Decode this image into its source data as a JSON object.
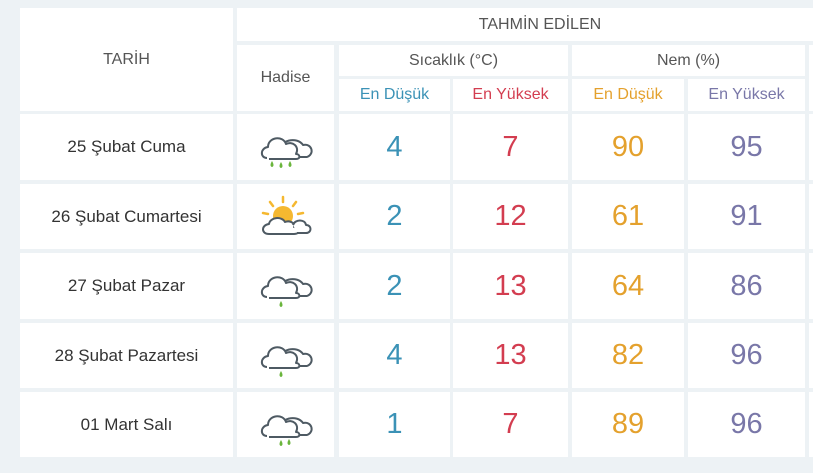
{
  "colors": {
    "temp_min": "#3b92b6",
    "temp_max": "#d33d50",
    "hum_min": "#e4a12d",
    "hum_max": "#7977a8",
    "header_text": "#555555",
    "cloud_stroke": "#4e5a63",
    "rain": "#6ab53c",
    "sun": "#f5b830"
  },
  "header": {
    "date_label": "TARİH",
    "event_label": "Hadise",
    "forecast_label": "TAHMİN EDİLEN",
    "temp_label": "Sıcaklık (°C)",
    "humidity_label": "Nem (%)",
    "min_label": "En Düşük",
    "max_label": "En Yüksek"
  },
  "rows": [
    {
      "date": "25 Şubat Cuma",
      "icon": "rain-cloud-icon",
      "temp_min": "4",
      "temp_max": "7",
      "hum_min": "90",
      "hum_max": "95"
    },
    {
      "date": "26 Şubat Cumartesi",
      "icon": "partly-sunny-icon",
      "temp_min": "2",
      "temp_max": "12",
      "hum_min": "61",
      "hum_max": "91"
    },
    {
      "date": "27 Şubat Pazar",
      "icon": "rain-cloud-icon",
      "temp_min": "2",
      "temp_max": "13",
      "hum_min": "64",
      "hum_max": "86"
    },
    {
      "date": "28 Şubat Pazartesi",
      "icon": "rain-cloud-icon",
      "temp_min": "4",
      "temp_max": "13",
      "hum_min": "82",
      "hum_max": "96"
    },
    {
      "date": "01 Mart Salı",
      "icon": "rain-cloud-icon",
      "temp_min": "1",
      "temp_max": "7",
      "hum_min": "89",
      "hum_max": "96"
    }
  ]
}
